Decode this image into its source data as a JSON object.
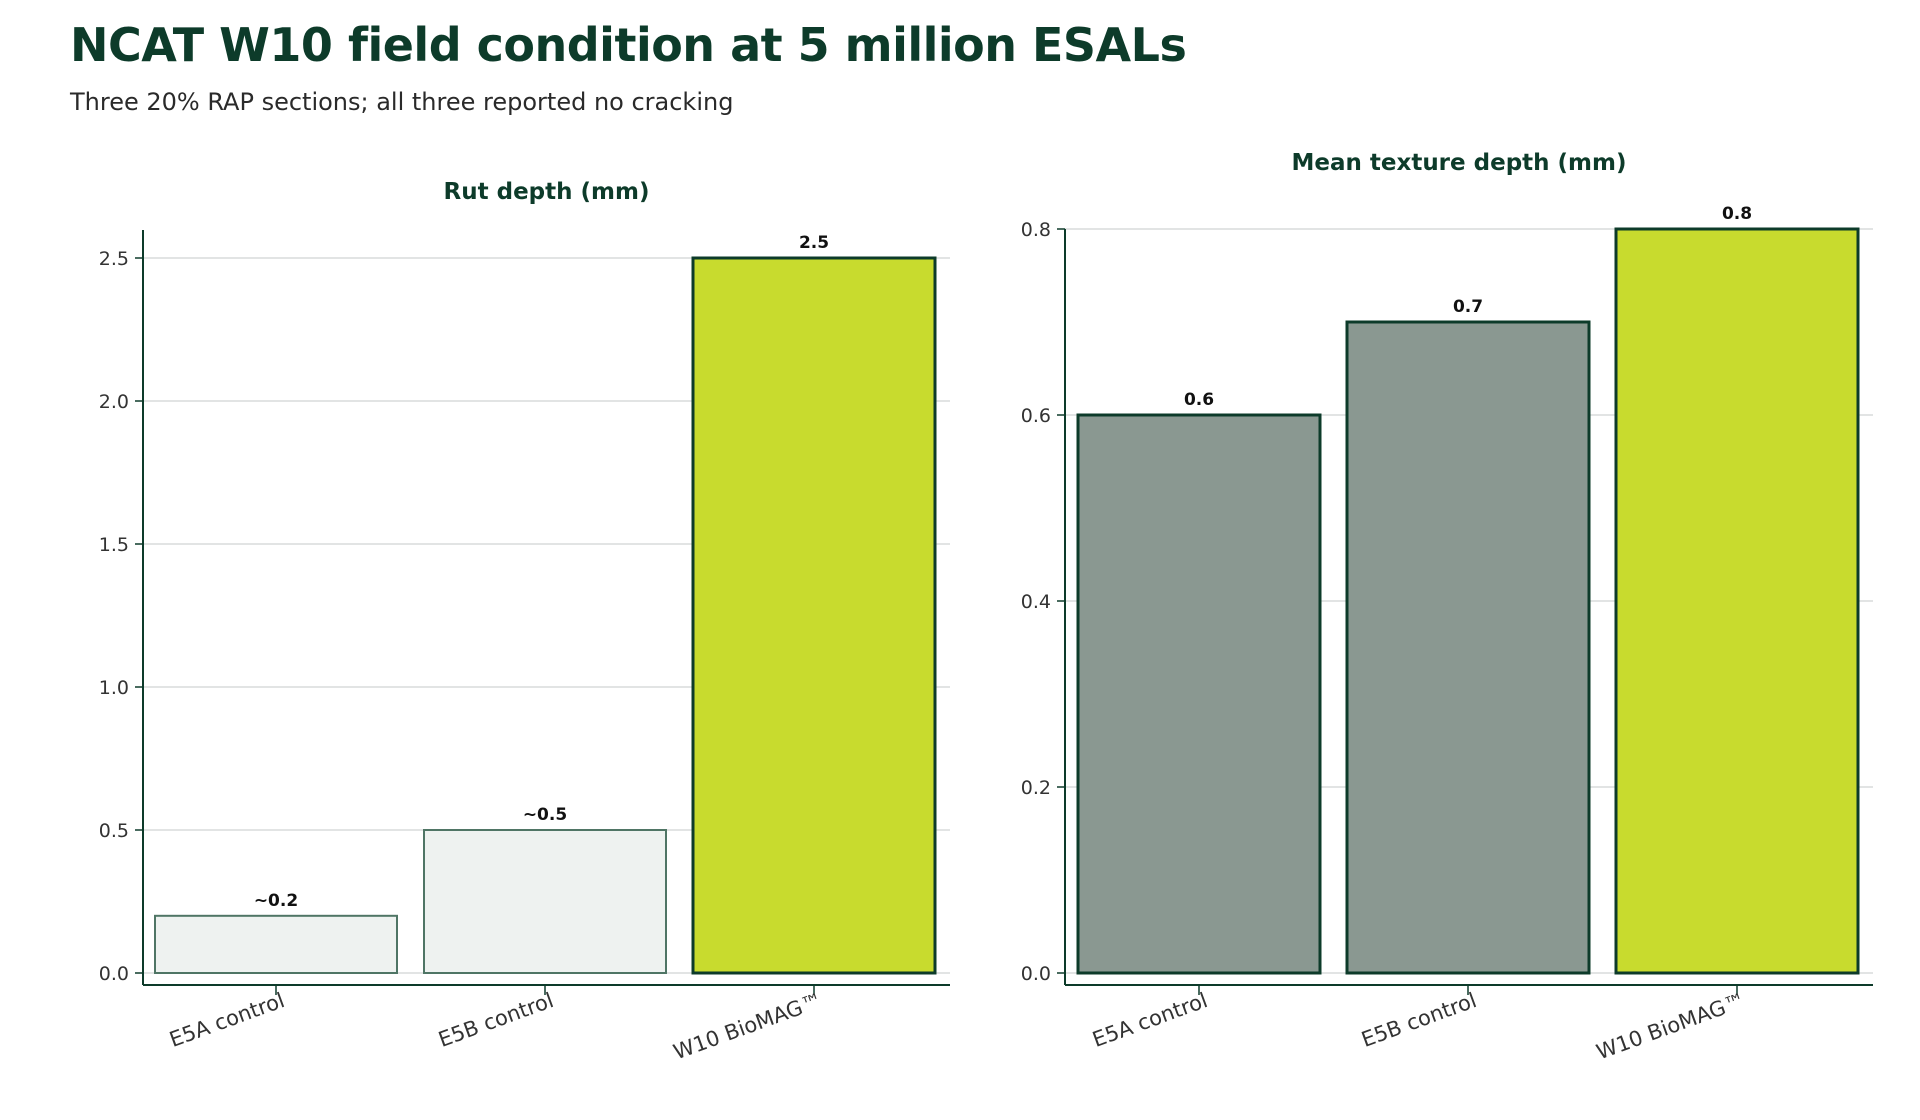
{
  "title": "NCAT W10 field condition at 5 million ESALs",
  "subtitle": "Three 20% RAP sections; all three reported no cracking",
  "colors": {
    "title": "#0d3b2a",
    "axis": "#0d3b2a",
    "grid": "#d9dcdb",
    "control_light_fill": "#eef2f0",
    "control_light_stroke": "#4f7565",
    "control_gray_fill": "#8a9891",
    "control_gray_stroke": "#0d3b2a",
    "biomag_fill": "#c8db2e",
    "biomag_stroke": "#0d3b2a"
  },
  "chart_data": [
    {
      "type": "bar",
      "title": "Rut depth (mm)",
      "categories": [
        "E5A control",
        "E5B control",
        "W10 BioMAG™"
      ],
      "values": [
        0.2,
        0.5,
        2.5
      ],
      "value_labels": [
        "~0.2",
        "~0.5",
        "2.5"
      ],
      "ylim": [
        0,
        2.6
      ],
      "yticks": [
        0.0,
        0.5,
        1.0,
        1.5,
        2.0,
        2.5
      ],
      "ytick_labels": [
        "0.0",
        "0.5",
        "1.0",
        "1.5",
        "2.0",
        "2.5"
      ],
      "grid": true,
      "xlabel": "",
      "ylabel": ""
    },
    {
      "type": "bar",
      "title": "Mean texture depth (mm)",
      "categories": [
        "E5A control",
        "E5B control",
        "W10 BioMAG™"
      ],
      "values": [
        0.6,
        0.7,
        0.8
      ],
      "value_labels": [
        "0.6",
        "0.7",
        "0.8"
      ],
      "ylim": [
        0,
        0.8
      ],
      "yticks": [
        0.0,
        0.2,
        0.4,
        0.6,
        0.8
      ],
      "ytick_labels": [
        "0.0",
        "0.2",
        "0.4",
        "0.6",
        "0.8"
      ],
      "grid": true,
      "xlabel": "",
      "ylabel": ""
    }
  ]
}
